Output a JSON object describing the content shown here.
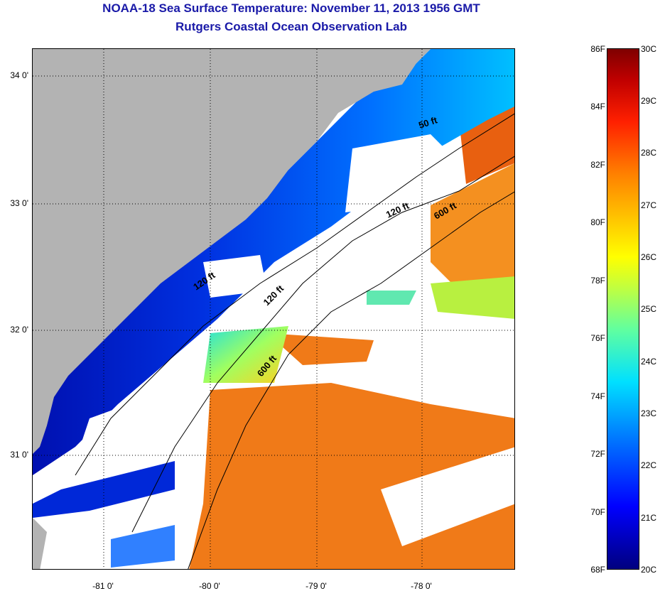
{
  "header": {
    "title_line1": "NOAA-18 Sea Surface Temperature:  November 11, 2013 1956 GMT",
    "title_line2": "Rutgers Coastal Ocean Observation Lab"
  },
  "map": {
    "lat_labels": [
      "34 0'",
      "33 0'",
      "32 0'",
      "31 0'"
    ],
    "lon_labels": [
      "-81 0'",
      "-80 0'",
      "-79 0'",
      "-78 0'"
    ],
    "contour_labels": [
      "50 ft",
      "120 ft",
      "600 ft",
      "120 ft",
      "600 ft",
      "120 ft"
    ],
    "colors": {
      "land": "#b3b3b3",
      "cloud": "#ffffff",
      "cold": "#0a1fc8",
      "warm": "#f07010"
    }
  },
  "colorbar": {
    "fahrenheit_labels": [
      "86F",
      "84F",
      "82F",
      "80F",
      "78F",
      "76F",
      "74F",
      "72F",
      "70F",
      "68F"
    ],
    "celsius_labels": [
      "30C",
      "29C",
      "28C",
      "27C",
      "26C",
      "25C",
      "24C",
      "23C",
      "22C",
      "21C",
      "20C"
    ],
    "range_f": [
      68,
      86
    ],
    "range_c": [
      20,
      30
    ]
  }
}
